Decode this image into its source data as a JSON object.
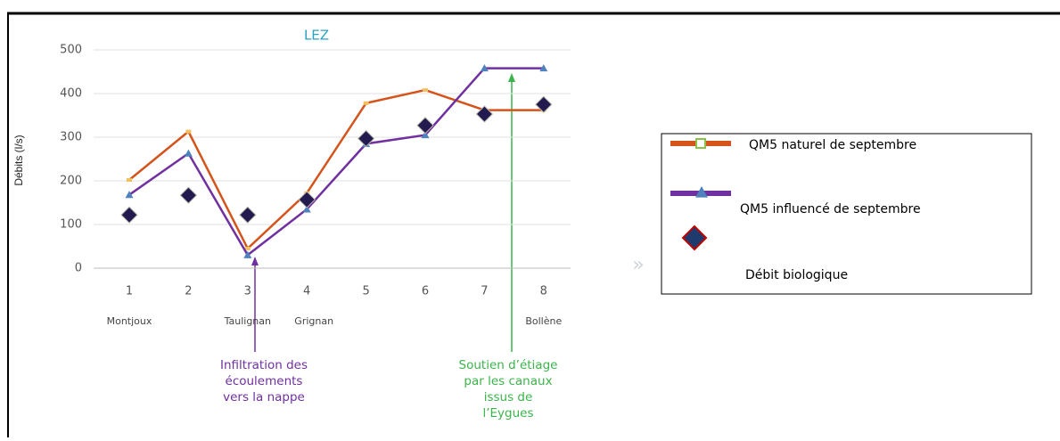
{
  "chart_data": {
    "type": "line",
    "title": "LEZ",
    "y_label": "Débits (l/s)",
    "categories": [
      "1",
      "2",
      "3",
      "4",
      "5",
      "6",
      "7",
      "8"
    ],
    "station_labels": [
      "Montjoux",
      null,
      "Taulignan",
      "Grignan",
      null,
      null,
      null,
      "Bollène"
    ],
    "series": [
      {
        "name": "QM5 naturel de septembre",
        "color": "#d4541c",
        "values": [
          202,
          313,
          45,
          172,
          378,
          408,
          362,
          362
        ]
      },
      {
        "name": "QM5 influencé de septembre",
        "color": "#7030a0",
        "values": [
          168,
          263,
          30,
          135,
          285,
          305,
          458,
          458
        ]
      },
      {
        "name": "Débit biologique",
        "color": "#231a4f",
        "values": [
          122,
          167,
          122,
          157,
          297,
          327,
          353,
          375
        ]
      }
    ],
    "ylim": [
      0,
      500
    ],
    "yticks": [
      0,
      100,
      200,
      300,
      400,
      500
    ],
    "grid": true,
    "annotations": [
      {
        "lines": [
          "Infiltration des",
          "écoulements",
          "vers la nappe"
        ],
        "color": "#7030a0"
      },
      {
        "lines": [
          "Soutien d’étiage",
          "par les canaux",
          "issus de",
          "l’Eygues"
        ],
        "color": "#3cb44b"
      }
    ]
  }
}
